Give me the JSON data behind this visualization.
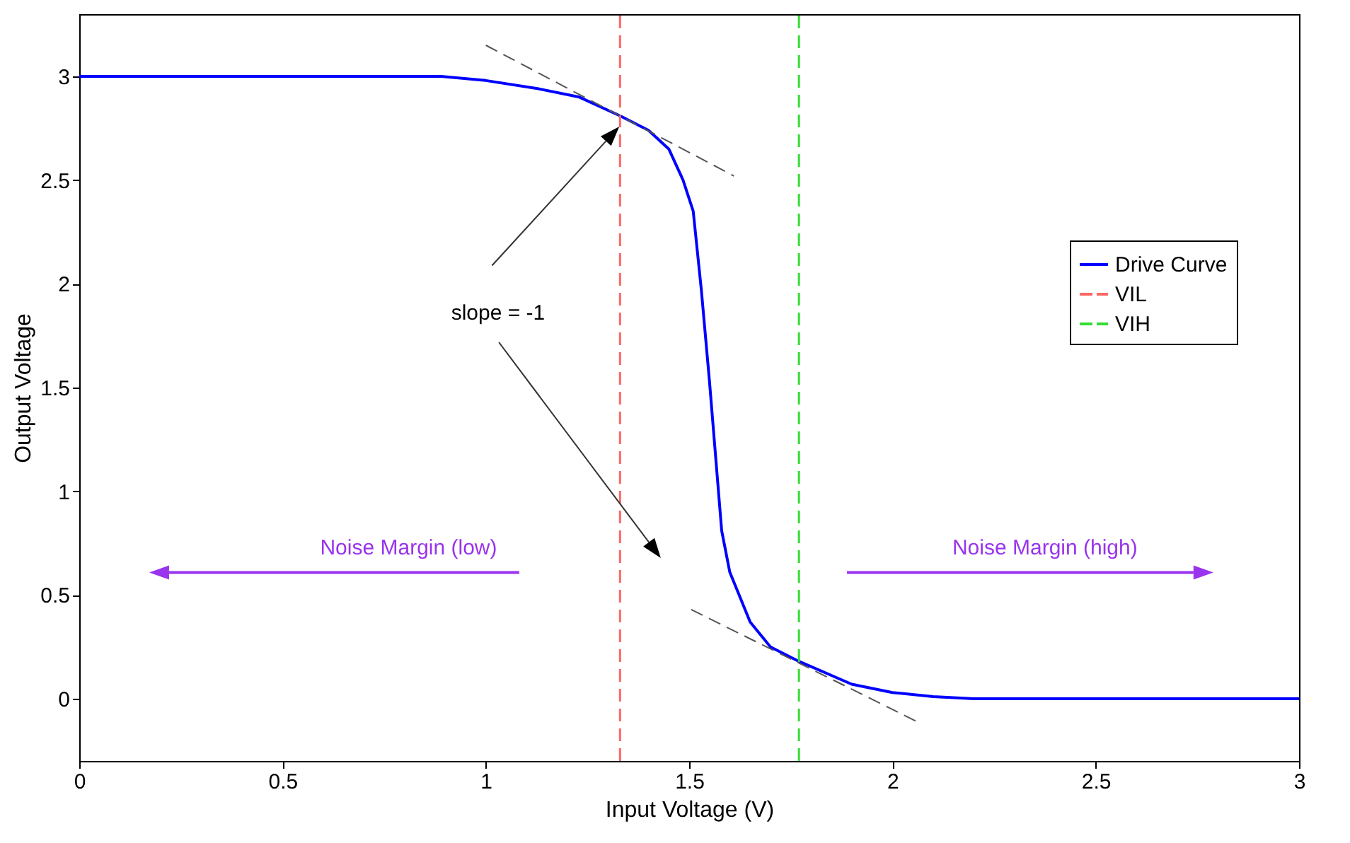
{
  "chart_data": {
    "type": "line",
    "xlabel": "Input Voltage (V)",
    "ylabel": "Output Voltage",
    "xlim": [
      0,
      3
    ],
    "ylim": [
      -0.3,
      3.3
    ],
    "xticks": [
      0,
      0.5,
      1,
      1.5,
      2,
      2.5,
      3
    ],
    "yticks": [
      0,
      0.5,
      1,
      1.5,
      2,
      2.5,
      3
    ],
    "grid": false,
    "legend": "right",
    "marker": "none",
    "series": [
      {
        "name": "Drive Curve",
        "color": "#0000ff",
        "line_style": "solid",
        "x": [
          0,
          0.89,
          1.0,
          1.13,
          1.23,
          1.33,
          1.4,
          1.45,
          1.485,
          1.51,
          1.53,
          1.55,
          1.58,
          1.6,
          1.65,
          1.7,
          1.77,
          1.9,
          2.0,
          2.1,
          2.2,
          3
        ],
        "values": [
          3,
          3,
          2.98,
          2.94,
          2.9,
          2.81,
          2.74,
          2.65,
          2.5,
          2.35,
          1.97,
          1.53,
          0.81,
          0.61,
          0.37,
          0.25,
          0.18,
          0.07,
          0.03,
          0.01,
          0,
          0
        ]
      },
      {
        "name": "VIL",
        "color": "#ff6666",
        "line_style": "dashed",
        "x": [
          1.33,
          1.33
        ],
        "values": [
          -0.3,
          3.3
        ]
      },
      {
        "name": "VIH",
        "color": "#33dd33",
        "line_style": "dashed",
        "x": [
          1.77,
          1.77
        ],
        "values": [
          -0.3,
          3.3
        ]
      },
      {
        "color": "#555555",
        "line_style": "dashed",
        "x": [
          1.0,
          1.61
        ],
        "values": [
          3.15,
          2.52
        ]
      },
      {
        "color": "#555555",
        "line_style": "dashed",
        "x": [
          1.505,
          2.06
        ],
        "values": [
          0.43,
          -0.11
        ]
      }
    ],
    "annotations": [
      "slope = -1",
      "Noise Margin (low)",
      "Noise Margin (high)"
    ]
  }
}
